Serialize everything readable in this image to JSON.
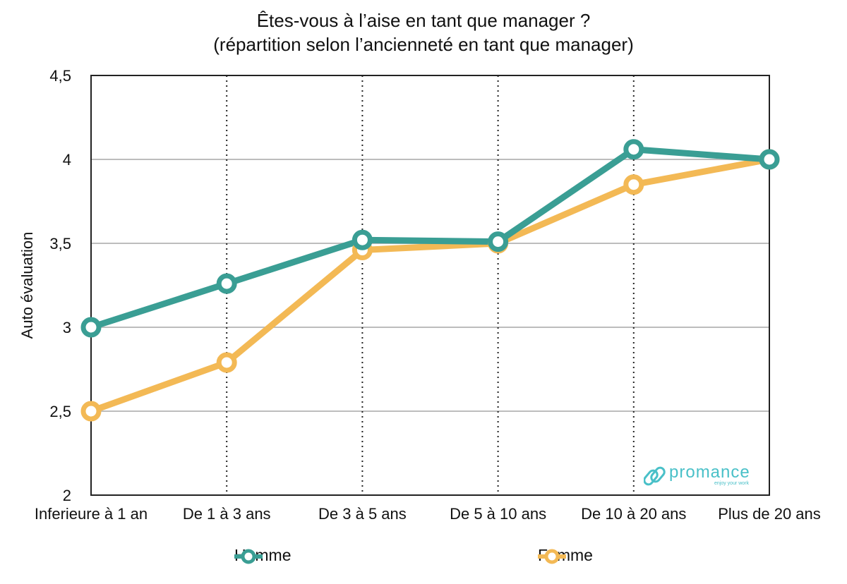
{
  "chart_data": {
    "type": "line",
    "title_line1": "Êtes-vous à l’aise en tant que manager ?",
    "title_line2": "(répartition selon l’ancienneté en tant que manager)",
    "xlabel": "",
    "ylabel": "Auto évaluation",
    "categories": [
      "Inferieure à 1 an",
      "De 1 à 3 ans",
      "De 3 à 5 ans",
      "De 5 à 10 ans",
      "De 10 à 20 ans",
      "Plus de 20 ans"
    ],
    "ylim": [
      2,
      4.5
    ],
    "yticks": [
      2,
      2.5,
      3,
      3.5,
      4,
      4.5
    ],
    "ytick_labels": [
      "2",
      "2,5",
      "3",
      "3,5",
      "4",
      "4,5"
    ],
    "grid": "horizontal solid, vertical dotted",
    "legend_position": "bottom",
    "series": [
      {
        "name": "Homme",
        "color": "#3a9e94",
        "values": [
          3.0,
          3.26,
          3.52,
          3.51,
          4.06,
          4.0
        ]
      },
      {
        "name": "Femme",
        "color": "#f3b955",
        "values": [
          2.5,
          2.79,
          3.46,
          3.5,
          3.85,
          4.0
        ]
      }
    ]
  },
  "logo": {
    "name": "promance",
    "tagline": "enjoy your work",
    "color": "#49c0c8"
  }
}
